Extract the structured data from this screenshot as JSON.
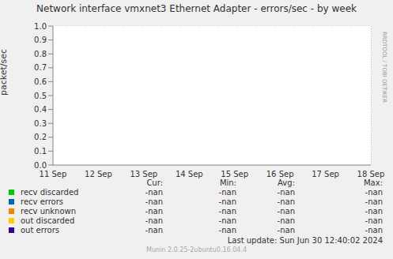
{
  "chart_data": {
    "type": "line",
    "title": "Network interface vmxnet3 Ethernet Adapter - errors/sec - by week",
    "y_label": "packet/sec",
    "categories": [
      "11 Sep",
      "12 Sep",
      "13 Sep",
      "14 Sep",
      "15 Sep",
      "16 Sep",
      "17 Sep",
      "18 Sep"
    ],
    "ylim": [
      0,
      1
    ],
    "yticks": [
      {
        "value": 0,
        "label": "0.0"
      },
      0.1,
      0.2,
      0.3,
      0.4,
      0.5,
      0.6,
      0.7,
      0.8,
      0.9,
      {
        "value": 1,
        "label": "1.0"
      }
    ],
    "grid": true,
    "legend_columns": [
      "Cur:",
      "Min:",
      "Avg:",
      "Max:"
    ],
    "series": [
      {
        "name": "recv discarded",
        "color": "#00cc00",
        "values": [
          null,
          null,
          null,
          null,
          null,
          null,
          null,
          null
        ],
        "stats": [
          "-nan",
          "-nan",
          "-nan",
          "-nan"
        ]
      },
      {
        "name": "recv errors",
        "color": "#0066b3",
        "values": [
          null,
          null,
          null,
          null,
          null,
          null,
          null,
          null
        ],
        "stats": [
          "-nan",
          "-nan",
          "-nan",
          "-nan"
        ]
      },
      {
        "name": "recv unknown",
        "color": "#ff8000",
        "values": [
          null,
          null,
          null,
          null,
          null,
          null,
          null,
          null
        ],
        "stats": [
          "-nan",
          "-nan",
          "-nan",
          "-nan"
        ]
      },
      {
        "name": "out discarded",
        "color": "#ffcc00",
        "values": [
          null,
          null,
          null,
          null,
          null,
          null,
          null,
          null
        ],
        "stats": [
          "-nan",
          "-nan",
          "-nan",
          "-nan"
        ]
      },
      {
        "name": "out errors",
        "color": "#330099",
        "values": [
          null,
          null,
          null,
          null,
          null,
          null,
          null,
          null
        ],
        "stats": [
          "-nan",
          "-nan",
          "-nan",
          "-nan"
        ]
      }
    ],
    "last_update": "Last update:  Sun Jun 30 12:40:02 2024",
    "footer": "Munin 2.0.25-2ubuntu0.16.04.4",
    "watermark": "RRDTOOL / TOBI OETIKER"
  }
}
